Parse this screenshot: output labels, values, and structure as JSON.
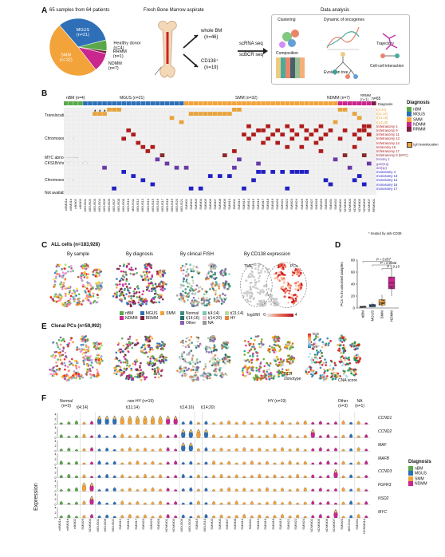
{
  "panelA": {
    "label": "A",
    "pie_title": "65 samples from 64 patients",
    "slices": [
      {
        "name": "MGUS",
        "n": "(n=21)",
        "value": 21,
        "color": "#2e6fb7"
      },
      {
        "name": "Healthy donor",
        "n": "(n=4)",
        "value": 4,
        "color": "#5aa84a"
      },
      {
        "name": "RRMM",
        "n": "(n=1)",
        "value": 1,
        "color": "#7a1f3d"
      },
      {
        "name": "NDMM",
        "n": "(n=7)",
        "value": 7,
        "color": "#c9268e"
      },
      {
        "name": "SMM",
        "n": "(n=32)",
        "value": 32,
        "color": "#f2a33a"
      }
    ],
    "aspirate_title": "Fresh Bone Marrow aspirate",
    "whole_bm": "whole BM",
    "whole_bm_n": "(n=46)",
    "cd138": "CD138⁺",
    "cd138_n": "(n=19)",
    "scrna": "scRNA seq",
    "scbcr": "scBCR seq",
    "analysis_title": "Data analysis",
    "analysis_items": [
      "Clustering",
      "Dynamic of oncogenes",
      "Trajectory",
      "Composition",
      "Evolution tree",
      "Cell-cell interaction"
    ]
  },
  "panelB": {
    "label": "B",
    "groups": [
      {
        "name": "nBM (n=4)",
        "color": "#5aa84a",
        "count": 4
      },
      {
        "name": "MGUS (n=21)",
        "color": "#2e6fb7",
        "count": 21
      },
      {
        "name": "SMM (n=32)",
        "color": "#f2a33a",
        "count": 32
      },
      {
        "name": "NDMM (n=7)",
        "color": "#c9268e",
        "count": 7
      },
      {
        "name": "RRMM (n=1)",
        "color": "#7a1f3d",
        "count": 1
      }
    ],
    "total": "n=65",
    "diagnosis_row": "Diagnosis",
    "row_groups": [
      "Translocation",
      "Chromosome gain",
      "MYC abnormalities",
      "CKS1B/chr1 abnormalities",
      "Chromosome loss",
      "Not available"
    ],
    "translocations": [
      {
        "label": "t(4;14)",
        "color": "#e8a33a"
      },
      {
        "label": "t(11;14)",
        "color": "#e8a33a"
      },
      {
        "label": "t(14;16)",
        "color": "#e8a33a"
      },
      {
        "label": "t(14;20)",
        "color": "#e8a33a"
      }
    ],
    "gains": [
      {
        "label": "tri/tetrasomy 4",
        "color": "#b01c1c"
      },
      {
        "label": "tri/tetrasomy 9",
        "color": "#b01c1c"
      },
      {
        "label": "tri/tetrasomy 11",
        "color": "#b01c1c"
      },
      {
        "label": "tri/tetrasomy 13",
        "color": "#b01c1c"
      },
      {
        "label": "tri/tetrasomy 14",
        "color": "#b01c1c"
      },
      {
        "label": "tetrasomy 16",
        "color": "#b01c1c"
      },
      {
        "label": "tri/tetrasomy 17",
        "color": "#b01c1c"
      }
    ],
    "myc": {
      "label": "tri/tetrasomy 8 (MYC)",
      "color": "#8a2b2b"
    },
    "cks": [
      {
        "label": "trisomy 1",
        "color": "#6a3ba8"
      },
      {
        "label": "gain(1q)",
        "color": "#6a3ba8"
      },
      {
        "label": "del(1p)",
        "color": "#6a3ba8"
      }
    ],
    "losses": [
      {
        "label": "monosomy 4",
        "color": "#2121c4"
      },
      {
        "label": "monosomy 13",
        "color": "#2121c4"
      },
      {
        "label": "monosomy 14",
        "color": "#2121c4"
      },
      {
        "label": "monosomy 16",
        "color": "#2121c4"
      },
      {
        "label": "monosomy 17",
        "color": "#2121c4"
      }
    ],
    "legend_title": "Diagnosis",
    "legend": [
      {
        "name": "nBM",
        "color": "#5aa84a"
      },
      {
        "name": "MGUS",
        "color": "#2e6fb7"
      },
      {
        "name": "SMM",
        "color": "#f2a33a"
      },
      {
        "name": "NDMM",
        "color": "#c9268e"
      },
      {
        "name": "RRMM",
        "color": "#7a1f3d"
      }
    ],
    "igh_legend": "IgH translocation",
    "footnote": "* treated by anti-CD38",
    "samples": [
      "nBM01a",
      "nBM01b",
      "nBM02",
      "nBM03",
      "MGUS01",
      "MGUS02",
      "MGUS03",
      "MGUS04",
      "MGUS05",
      "MGUS06",
      "MGUS07",
      "MGUS08",
      "MGUS09",
      "MGUS10",
      "MGUS11",
      "MGUS12",
      "MGUS13",
      "MGUS14",
      "MGUS15",
      "MGUS16",
      "MGUS17",
      "MGUS18",
      "MGUS19",
      "MGUS20",
      "MGUS21",
      "SMM01",
      "SMM02",
      "SMM03",
      "SMM04",
      "SMM05",
      "SMM06",
      "SMM07",
      "SMM08",
      "SMM09",
      "SMM10",
      "SMM11",
      "SMM12",
      "SMM13",
      "SMM14",
      "SMM15",
      "SMM16",
      "SMM17",
      "SMM18",
      "SMM19",
      "SMM20",
      "SMM21",
      "SMM22",
      "SMM23",
      "SMM24",
      "SMM25",
      "SMM26",
      "SMM27",
      "SMM28",
      "SMM29",
      "SMM30",
      "SMM31",
      "SMM32",
      "NDMM01",
      "NDMM02",
      "NDMM03",
      "NDMM04",
      "NDMM05",
      "NDMM06",
      "NDMM07",
      "RRMM01"
    ]
  },
  "panelC": {
    "label": "C",
    "title": "ALL cells (n=183,928)",
    "sub": [
      "By sample",
      "By diagnosis",
      "By clinical FISH",
      "By CD138 expression"
    ],
    "diag_legend": [
      {
        "name": "nBM",
        "color": "#5aa84a"
      },
      {
        "name": "MGUS",
        "color": "#2e6fb7"
      },
      {
        "name": "SMM",
        "color": "#f2a33a"
      },
      {
        "name": "NDMM",
        "color": "#c9268e"
      },
      {
        "name": "RRMM",
        "color": "#7a1f3d"
      }
    ],
    "fish_legend": [
      {
        "name": "Normal",
        "color": "#3b8f7e"
      },
      {
        "name": "t(4;14)",
        "color": "#7fc7b0"
      },
      {
        "name": "t(11;14)",
        "color": "#b8d9a8"
      },
      {
        "name": "t(14;16)",
        "color": "#1f6f6a"
      },
      {
        "name": "t(14;20)",
        "color": "#e8c8d8"
      },
      {
        "name": "HY",
        "color": "#e8853a"
      },
      {
        "name": "Other",
        "color": "#8a5fb0"
      },
      {
        "name": "NA",
        "color": "#999999"
      }
    ],
    "tme": "TME",
    "pcs": "PCs",
    "logumi": "logUMI",
    "logumi_min": "0",
    "logumi_max": "4"
  },
  "panelD": {
    "label": "D",
    "ylabel": "PCs % in unsorted samples",
    "categories": [
      "nBM",
      "MGUS",
      "SMM",
      "NDMM"
    ],
    "colors": [
      "#5aa84a",
      "#2e6fb7",
      "#f2a33a",
      "#c9268e"
    ],
    "pvals": [
      "P = 0.057",
      "P = 0.0046",
      "P = 0.19"
    ],
    "yticks": [
      "0",
      "20",
      "40",
      "60",
      "80"
    ],
    "ylim": [
      0,
      80
    ]
  },
  "panelE": {
    "label": "E",
    "title": "Clonal PCs (n=59,992)",
    "bcr": "BCR clonotype",
    "cna": "CNA score",
    "high": "high",
    "low": "low"
  },
  "panelF": {
    "label": "F",
    "groups": [
      "Normal (n=3)",
      "t(4;14)",
      "non-HY (n=19)",
      "t(14;16)",
      "t(14;20)",
      "HY (n=19)",
      "Other (n=3)",
      "NA (n=1)"
    ],
    "sub_groups": [
      "t(11;14)"
    ],
    "genes": [
      "CCND1",
      "CCND2",
      "MAF",
      "MAFB",
      "CCND3",
      "FGFR3",
      "NSD2",
      "MYC"
    ],
    "ylabel": "Expression",
    "yticks": [
      "0",
      "2",
      "4"
    ],
    "legend_title": "Diagnosis",
    "legend": [
      {
        "name": "nBM",
        "color": "#5aa84a"
      },
      {
        "name": "MGUS",
        "color": "#2e6fb7"
      },
      {
        "name": "SMM",
        "color": "#f2a33a"
      },
      {
        "name": "NDMM",
        "color": "#c9268e"
      }
    ],
    "samples": [
      "nBM01a",
      "nBM01b",
      "nBM02",
      "SMM29",
      "NDMM04",
      "MGUS01",
      "MGUS06",
      "MGUS02",
      "SMM12",
      "SMM13",
      "SMM17",
      "SMM23",
      "SMM26",
      "SMM28",
      "NDMM01",
      "NDMM03",
      "MGUS09",
      "MGUS05",
      "SMM15",
      "MGUS10",
      "SMM03",
      "SMM05",
      "SMM07",
      "SMM08",
      "SMM10",
      "SMM11",
      "SMM14",
      "SMM16",
      "SMM18",
      "SMM19",
      "SMM21",
      "SMM22",
      "SMM24",
      "NDMM02",
      "NDMM05",
      "NDMM06",
      "NDMM07",
      "SMM20",
      "MGUS11",
      "SMM31",
      "NDMM01b"
    ]
  }
}
